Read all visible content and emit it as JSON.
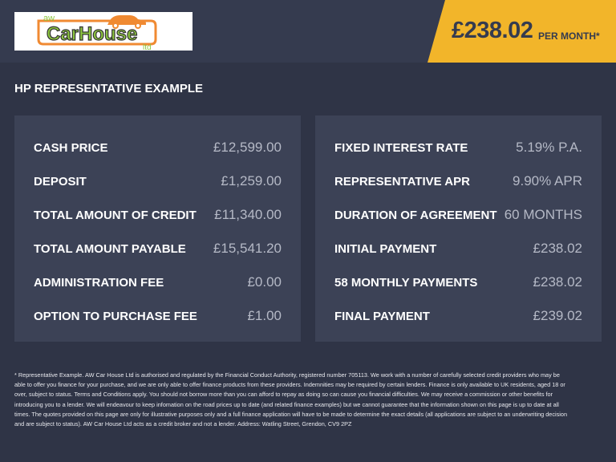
{
  "logo": {
    "text_small": "AW",
    "text_main": "CarHouse",
    "text_suffix": "ltd",
    "colors": {
      "green": "#8dc63f",
      "orange": "#f08a32"
    }
  },
  "price": {
    "amount": "£238.02",
    "label": "PER MONTH*",
    "color": "#f2b52a"
  },
  "section_title": "HP REPRESENTATIVE EXAMPLE",
  "left_panel": [
    {
      "label": "CASH PRICE",
      "value": "£12,599.00"
    },
    {
      "label": "DEPOSIT",
      "value": "£1,259.00"
    },
    {
      "label": "TOTAL AMOUNT OF CREDIT",
      "value": "£11,340.00"
    },
    {
      "label": "TOTAL AMOUNT PAYABLE",
      "value": "£15,541.20"
    },
    {
      "label": "ADMINISTRATION FEE",
      "value": "£0.00"
    },
    {
      "label": "OPTION TO PURCHASE FEE",
      "value": "£1.00"
    }
  ],
  "right_panel": [
    {
      "label": "FIXED INTEREST RATE",
      "value": "5.19% P.A."
    },
    {
      "label": "REPRESENTATIVE APR",
      "value": "9.90% APR"
    },
    {
      "label": "DURATION OF AGREEMENT",
      "value": "60 MONTHS"
    },
    {
      "label": "INITIAL PAYMENT",
      "value": "£238.02"
    },
    {
      "label": "58 MONTHLY PAYMENTS",
      "value": "£238.02"
    },
    {
      "label": "FINAL PAYMENT",
      "value": "£239.02"
    }
  ],
  "disclaimer": "* Representative Example. AW Car House Ltd is authorised and regulated by the Financial Conduct Authority, registered number 705113. We work with a number of carefully selected credit providers who may be able to offer you finance for your purchase, and we are only able to offer finance products from these providers. Indemnities may be required by certain lenders. Finance is only available to UK residents, aged 18 or over, subject to status. Terms and Conditions apply. You should not borrow more than you can afford to repay as doing so can cause you financial difficulties. We may receive a commission or other benefits for introducing you to a lender. We will endeavour to keep infomation on the road prices up to date (and related finance examples) but we cannot guarantee that the information shown on this page is up to date at all times. The quotes provided on this page are only for illustrative purposes only and a full finance application will have to be made to determine the exact details (all applications are subject to an underwriting decision and are subject to status). AW Car House Ltd acts as a credit broker and not a lender. Address: Watling Street, Grendon, CV9 2PZ"
}
